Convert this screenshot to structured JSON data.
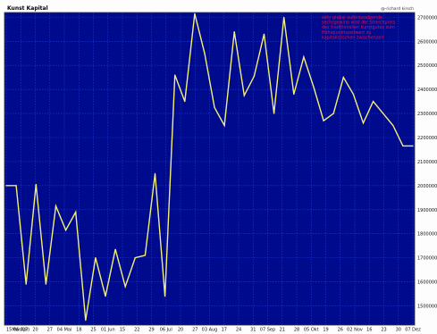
{
  "header": {
    "title": "Kunst Kapital",
    "credit": "@-richard kirsch"
  },
  "annotation": {
    "lines": [
      "sehr global auferzusetzende",
      "sechsgewinn wird der Streichpreis",
      "des traditionellen kunstgutes zum",
      "Höhepunktszeitwert zu",
      "kapitalistischen zwischenzeit"
    ]
  },
  "colors": {
    "plot_background": "#000a8c",
    "grid": "#1d3bd3",
    "line": "#f4ef7a",
    "annotation": "#e0104a"
  },
  "chart_data": {
    "type": "line",
    "title": "Kunst Kapital",
    "xlabel": "",
    "ylabel": "",
    "grid": true,
    "legend": "none",
    "yaxis_side": "right",
    "ylim": [
      1420000,
      2720000
    ],
    "yticks": [
      1500000,
      1600000,
      1700000,
      1800000,
      1900000,
      2000000,
      2100000,
      2200000,
      2300000,
      2400000,
      2500000,
      2600000,
      2700000
    ],
    "xtick_labels": [
      "15Mar(07)",
      "06 Apr",
      "20",
      "27",
      "04 Mai",
      "18",
      "25",
      "01 Jun",
      "15",
      "22",
      "29",
      "06 Jul",
      "20",
      "27",
      "03 Aug",
      "17",
      "24",
      "31",
      "07 Sep",
      "21",
      "28",
      "05 Okt",
      "19",
      "26",
      "02 Nov",
      "16",
      "23",
      "30",
      "07 Dez"
    ],
    "series": [
      {
        "values": [
          2000000,
          2000000,
          1590000,
          2005000,
          1590000,
          1915000,
          1815000,
          1890000,
          1440000,
          1700000,
          1540000,
          1735000,
          1580000,
          1700000,
          1710000,
          2050000,
          1540000,
          2460000,
          2350000,
          2715000,
          2550000,
          2325000,
          2250000,
          2640000,
          2375000,
          2455000,
          2630000,
          2300000,
          2700000,
          2380000,
          2535000,
          2410000,
          2270000,
          2300000,
          2450000,
          2380000,
          2260000,
          2350000,
          2300000,
          2250000,
          2165000,
          2165000
        ]
      }
    ]
  }
}
